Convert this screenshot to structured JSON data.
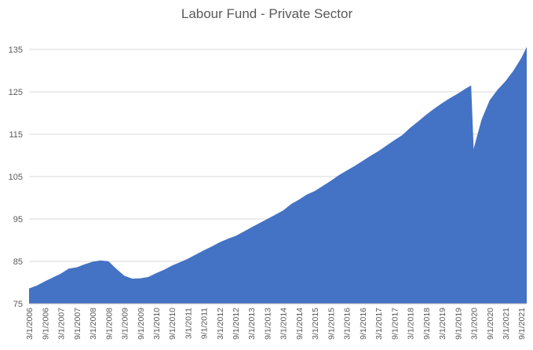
{
  "chart_data": {
    "type": "area",
    "title": "Labour Fund - Private Sector",
    "xlabel": "",
    "ylabel": "",
    "ylim": [
      75,
      136
    ],
    "y_ticks": [
      75,
      85,
      95,
      105,
      115,
      125,
      135
    ],
    "grid": true,
    "legend": "none",
    "color": "#4472C4",
    "x_tick_labels": [
      "3/1/2006",
      "9/1/2006",
      "3/1/2007",
      "9/1/2007",
      "3/1/2008",
      "9/1/2008",
      "3/1/2009",
      "9/1/2009",
      "3/1/2010",
      "9/1/2010",
      "3/1/2011",
      "9/1/2011",
      "3/1/2012",
      "9/1/2012",
      "3/1/2013",
      "9/1/2013",
      "3/1/2014",
      "9/1/2014",
      "3/1/2015",
      "9/1/2015",
      "3/1/2016",
      "9/1/2016",
      "3/1/2017",
      "9/1/2017",
      "3/1/2018",
      "9/1/2018",
      "3/1/2019",
      "9/1/2019",
      "3/1/2020",
      "9/1/2020",
      "3/1/2021",
      "9/1/2021"
    ],
    "x": [
      "2006-03",
      "2006-06",
      "2006-09",
      "2006-12",
      "2007-03",
      "2007-06",
      "2007-09",
      "2007-12",
      "2008-03",
      "2008-06",
      "2008-09",
      "2008-12",
      "2009-03",
      "2009-06",
      "2009-09",
      "2009-12",
      "2010-03",
      "2010-06",
      "2010-09",
      "2010-12",
      "2011-03",
      "2011-06",
      "2011-09",
      "2011-12",
      "2012-03",
      "2012-06",
      "2012-09",
      "2012-12",
      "2013-03",
      "2013-06",
      "2013-09",
      "2013-12",
      "2014-03",
      "2014-06",
      "2014-09",
      "2014-12",
      "2015-03",
      "2015-06",
      "2015-09",
      "2015-12",
      "2016-03",
      "2016-06",
      "2016-09",
      "2016-12",
      "2017-03",
      "2017-06",
      "2017-09",
      "2017-12",
      "2018-03",
      "2018-06",
      "2018-09",
      "2018-12",
      "2019-03",
      "2019-06",
      "2019-09",
      "2019-12",
      "2020-02",
      "2020-03",
      "2020-04",
      "2020-06",
      "2020-09",
      "2020-12",
      "2021-03",
      "2021-06",
      "2021-09",
      "2021-11"
    ],
    "values": [
      78.6,
      79.3,
      80.3,
      81.2,
      82.1,
      83.3,
      83.6,
      84.3,
      84.9,
      85.2,
      85.0,
      83.2,
      81.6,
      80.9,
      81.0,
      81.3,
      82.2,
      83.0,
      84.0,
      84.8,
      85.6,
      86.6,
      87.6,
      88.5,
      89.5,
      90.3,
      91.0,
      92.0,
      93.0,
      94.0,
      95.0,
      96.0,
      97.0,
      98.5,
      99.6,
      100.8,
      101.6,
      102.8,
      104.0,
      105.3,
      106.4,
      107.5,
      108.7,
      109.9,
      111.0,
      112.3,
      113.6,
      114.8,
      116.5,
      118.0,
      119.6,
      121.0,
      122.3,
      123.5,
      124.6,
      125.8,
      126.5,
      111.5,
      114.0,
      118.5,
      123.0,
      125.5,
      127.5,
      130.0,
      133.0,
      135.6
    ]
  }
}
